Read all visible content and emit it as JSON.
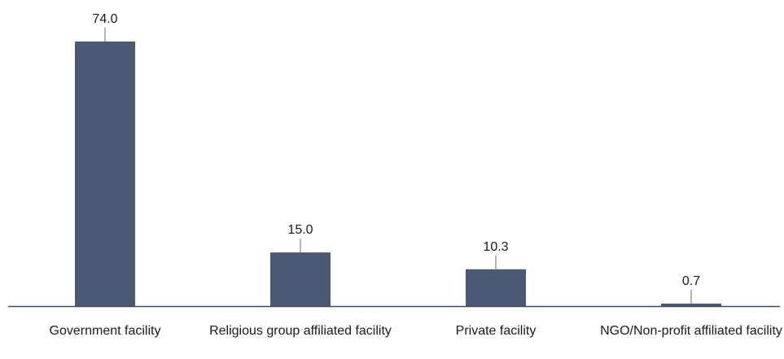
{
  "chart_data": {
    "type": "bar",
    "title": "",
    "xlabel": "",
    "ylabel": "",
    "categories": [
      "Government facility",
      "Religious group affiliated facility",
      "Private facility",
      "NGO/Non-profit affiliated facility"
    ],
    "values": [
      74.0,
      15.0,
      10.3,
      0.7
    ],
    "value_labels": [
      "74.0",
      "15.0",
      "10.3",
      "0.7"
    ],
    "ylim": [
      0,
      74.0
    ],
    "grid": false,
    "legend": "none",
    "colors": {
      "bar": "#4a5a72",
      "axis": "#3c4a60",
      "leader_line": "#9a9a9a",
      "text": "#1a1a1a"
    }
  }
}
